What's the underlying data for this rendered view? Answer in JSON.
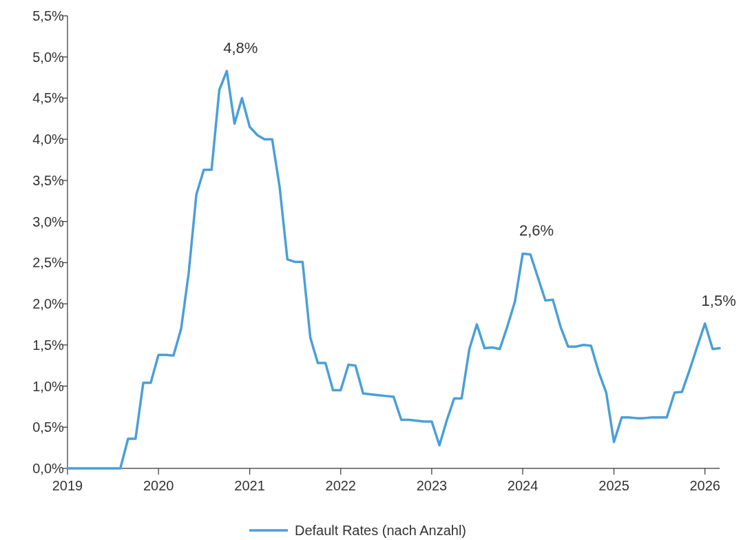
{
  "chart_data": {
    "type": "line",
    "x": [
      "2019-01",
      "2019-08",
      "2019-09",
      "2019-10",
      "2019-11",
      "2019-12",
      "2020-01",
      "2020-02",
      "2020-03",
      "2020-04",
      "2020-05",
      "2020-06",
      "2020-07",
      "2020-08",
      "2020-09",
      "2020-10",
      "2020-11",
      "2020-12",
      "2021-01",
      "2021-02",
      "2021-03",
      "2021-04",
      "2021-05",
      "2021-06",
      "2021-07",
      "2021-08",
      "2021-09",
      "2021-10",
      "2021-11",
      "2021-12",
      "2022-01",
      "2022-02",
      "2022-03",
      "2022-04",
      "2022-05",
      "2022-06",
      "2022-07",
      "2022-08",
      "2022-09",
      "2022-10",
      "2022-11",
      "2022-12",
      "2023-01",
      "2023-02",
      "2023-03",
      "2023-04",
      "2023-05",
      "2023-06",
      "2023-07",
      "2023-08",
      "2023-09",
      "2023-10",
      "2023-11",
      "2023-12",
      "2024-01",
      "2024-02",
      "2024-03",
      "2024-04",
      "2024-05",
      "2024-06",
      "2024-07",
      "2024-08",
      "2024-09",
      "2024-10",
      "2024-11",
      "2024-12",
      "2025-01",
      "2025-02",
      "2025-03",
      "2025-04",
      "2025-05",
      "2025-06",
      "2025-07",
      "2025-08",
      "2025-09",
      "2025-10",
      "2025-11",
      "2025-12",
      "2026-01",
      "2026-02",
      "2026-03"
    ],
    "series": [
      {
        "name": "Default Rates (nach Anzahl)",
        "color": "#4a9fd8",
        "values": [
          0,
          0,
          0.36,
          0.36,
          1.04,
          1.04,
          1.38,
          1.38,
          1.37,
          1.7,
          2.37,
          3.33,
          3.63,
          3.63,
          4.6,
          4.83,
          4.19,
          4.5,
          4.15,
          4.05,
          4.0,
          4.0,
          3.42,
          2.54,
          2.51,
          2.51,
          1.59,
          1.28,
          1.28,
          0.95,
          0.95,
          1.26,
          1.25,
          0.91,
          0.9,
          0.89,
          0.88,
          0.87,
          0.59,
          0.59,
          0.58,
          0.57,
          0.57,
          0.28,
          0.57,
          0.85,
          0.85,
          1.45,
          1.75,
          1.46,
          1.47,
          1.45,
          1.73,
          2.03,
          2.61,
          2.6,
          2.33,
          2.04,
          2.05,
          1.72,
          1.48,
          1.48,
          1.5,
          1.49,
          1.17,
          0.92,
          0.32,
          0.62,
          0.62,
          0.61,
          0.61,
          0.62,
          0.62,
          0.62,
          0.92,
          0.93,
          1.2,
          1.48,
          1.76,
          1.45,
          1.46
        ]
      }
    ],
    "xlim": [
      "2019-01",
      "2026-03"
    ],
    "xticks": [
      {
        "value": "2019",
        "label": "2019"
      },
      {
        "value": "2020",
        "label": "2020"
      },
      {
        "value": "2021",
        "label": "2021"
      },
      {
        "value": "2022",
        "label": "2022"
      },
      {
        "value": "2023",
        "label": "2023"
      },
      {
        "value": "2024",
        "label": "2024"
      },
      {
        "value": "2025",
        "label": "2025"
      },
      {
        "value": "2026",
        "label": "2026"
      }
    ],
    "ylim": [
      0,
      5.5
    ],
    "yticks": [
      {
        "value": 0,
        "label": "0,0%"
      },
      {
        "value": 0.5,
        "label": "0,5%"
      },
      {
        "value": 1,
        "label": "1,0%"
      },
      {
        "value": 1.5,
        "label": "1,5%"
      },
      {
        "value": 2,
        "label": "2,0%"
      },
      {
        "value": 2.5,
        "label": "2,5%"
      },
      {
        "value": 3,
        "label": "3,0%"
      },
      {
        "value": 3.5,
        "label": "3,5%"
      },
      {
        "value": 4,
        "label": "4,0%"
      },
      {
        "value": 4.5,
        "label": "4,5%"
      },
      {
        "value": 5,
        "label": "5,0%"
      },
      {
        "value": 5.5,
        "label": "5,5%"
      }
    ],
    "annotations": [
      {
        "text": "4,8%",
        "x": "2020-10",
        "y": 4.83
      },
      {
        "text": "2,6%",
        "x": "2024-01",
        "y": 2.61
      },
      {
        "text": "1,5%",
        "x": "2026-01",
        "y": 1.76
      }
    ],
    "grid": false,
    "legend": "bottom",
    "marker": "none",
    "line_style": "solid"
  }
}
